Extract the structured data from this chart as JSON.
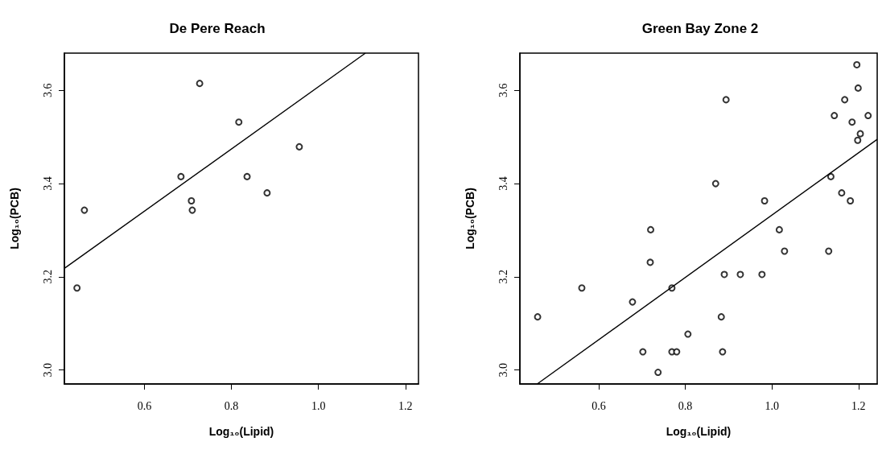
{
  "chart_data": [
    {
      "type": "scatter",
      "title": "De Pere Reach",
      "xlabel": "Log₁₀(Lipid)",
      "ylabel": "Log₁₀(PCB)",
      "xlim": [
        0.416,
        1.23
      ],
      "ylim": [
        2.97,
        3.68
      ],
      "xticks": [
        0.6,
        0.8,
        {
          "value": 1,
          "label": "1.0"
        },
        1.2
      ],
      "yticks": [
        {
          "value": 3,
          "label": "3.0"
        },
        3.2,
        3.4,
        3.6
      ],
      "grid": false,
      "series": [
        {
          "color": "#000000",
          "marker": "circle",
          "x": [
            0.445,
            0.462,
            0.684,
            0.708,
            0.71,
            0.727,
            0.817,
            0.836,
            0.882,
            0.956
          ],
          "values": [
            3.176,
            3.343,
            3.415,
            3.363,
            3.343,
            3.615,
            3.532,
            3.415,
            3.38,
            3.479
          ]
        },
        {
          "type": "line",
          "marker": "none",
          "color": "#000000",
          "x": [
            0.416,
            1.108
          ],
          "values": [
            3.218,
            3.68
          ]
        }
      ]
    },
    {
      "type": "scatter",
      "title": "Green Bay Zone 2",
      "xlabel": "Log₁₀(Lipid)",
      "ylabel": "Log₁₀(PCB)",
      "xlim": [
        0.418,
        1.243
      ],
      "ylim": [
        2.97,
        3.68
      ],
      "xticks": [
        0.6,
        0.8,
        {
          "value": 1,
          "label": "1.0"
        },
        1.2
      ],
      "yticks": [
        {
          "value": 3,
          "label": "3.0"
        },
        3.2,
        3.4,
        3.6
      ],
      "grid": false,
      "series": [
        {
          "color": "#000000",
          "marker": "circle",
          "x": [
            0.459,
            0.561,
            0.678,
            0.702,
            0.72,
            0.719,
            0.737,
            0.769,
            0.769,
            0.78,
            0.806,
            0.87,
            0.894,
            0.883,
            0.89,
            0.886,
            0.927,
            0.977,
            0.983,
            1.017,
            1.029,
            1.131,
            1.136,
            1.144,
            1.161,
            1.168,
            1.181,
            1.185,
            1.196,
            1.199,
            1.198,
            1.204,
            1.222
          ],
          "values": [
            3.114,
            3.176,
            3.146,
            3.039,
            3.301,
            3.231,
            2.995,
            3.176,
            3.039,
            3.039,
            3.077,
            3.4,
            3.58,
            3.114,
            3.205,
            3.039,
            3.205,
            3.205,
            3.363,
            3.301,
            3.255,
            3.255,
            3.415,
            3.546,
            3.38,
            3.58,
            3.363,
            3.532,
            3.655,
            3.605,
            3.493,
            3.507,
            3.546
          ]
        },
        {
          "type": "line",
          "marker": "none",
          "color": "#000000",
          "x": [
            0.458,
            1.243
          ],
          "values": [
            2.97,
            3.495
          ]
        }
      ]
    }
  ]
}
